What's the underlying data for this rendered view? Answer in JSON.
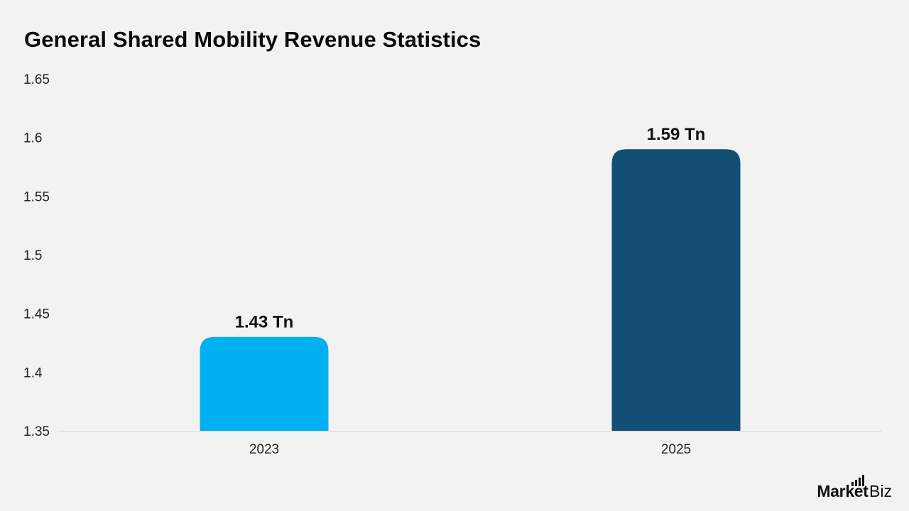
{
  "chart_data": {
    "type": "bar",
    "title": "General Shared Mobility Revenue Statistics",
    "categories": [
      "2023",
      "2025"
    ],
    "values": [
      1.43,
      1.59
    ],
    "data_labels": [
      "1.43 Tn",
      "1.59 Tn"
    ],
    "bar_colors": [
      "#00b0f0",
      "#134f74"
    ],
    "ylim": [
      1.35,
      1.65
    ],
    "yticks": [
      1.35,
      1.4,
      1.45,
      1.5,
      1.55,
      1.6,
      1.65
    ],
    "ytick_labels": [
      "1.35",
      "1.4",
      "1.45",
      "1.5",
      "1.55",
      "1.6",
      "1.65"
    ],
    "xlabel": "",
    "ylabel": "",
    "grid": false,
    "legend": "none"
  },
  "brand": {
    "name": "Market",
    "suffix": ".Biz"
  }
}
